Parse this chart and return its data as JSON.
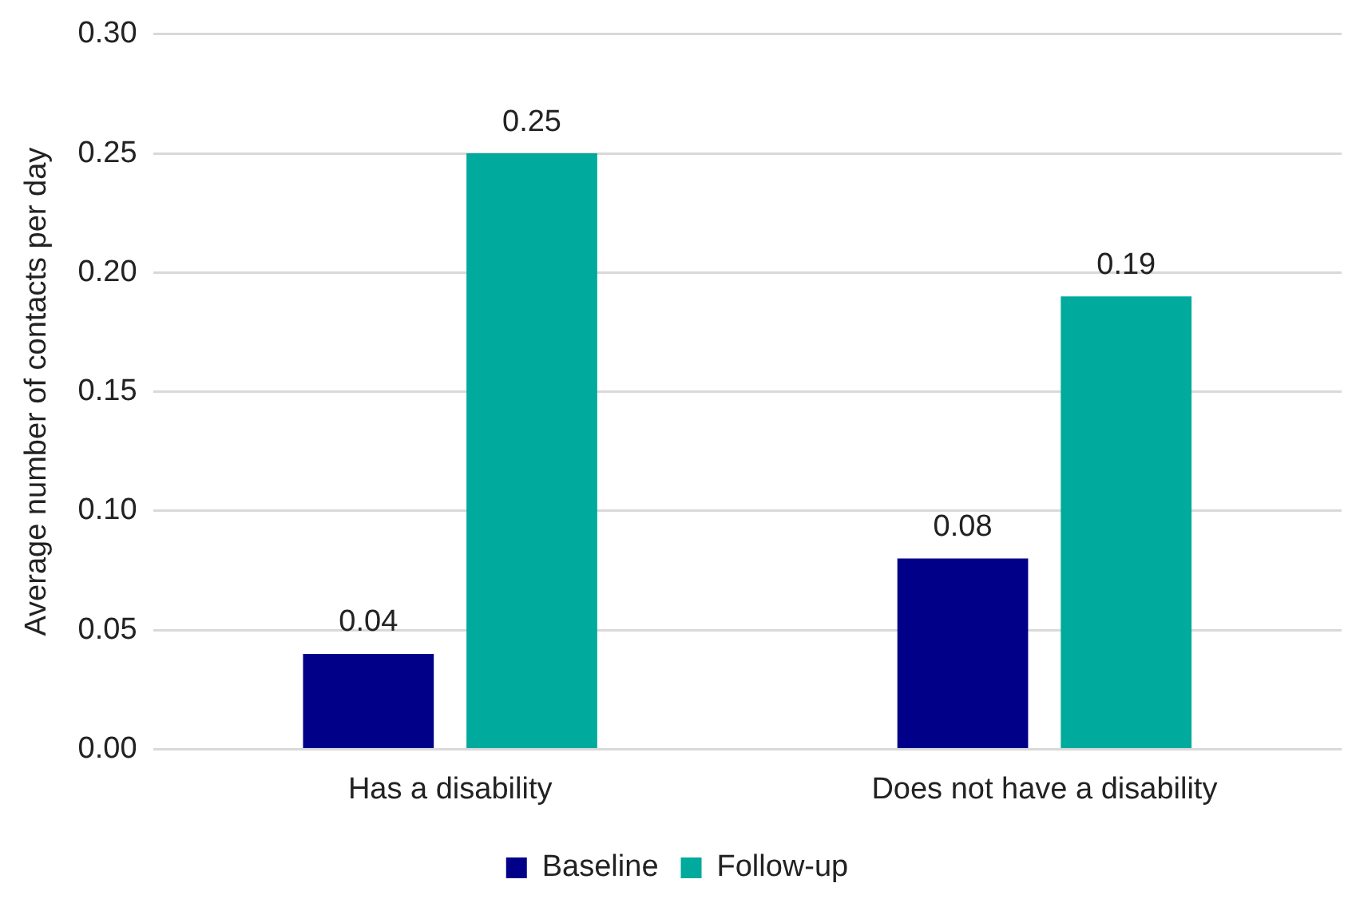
{
  "chart_data": {
    "type": "bar",
    "ylabel": "Average number of contacts per day",
    "categories": [
      "Has a disability",
      "Does not have a disability"
    ],
    "series": [
      {
        "name": "Baseline",
        "color": "#000088",
        "values": [
          0.04,
          0.08
        ]
      },
      {
        "name": "Follow-up",
        "color": "#00aa9c",
        "values": [
          0.25,
          0.19
        ]
      }
    ],
    "ylim": [
      0,
      0.3
    ],
    "yticks": [
      {
        "value": 0,
        "label": "0.00"
      },
      {
        "value": 0.05,
        "label": "0.05"
      },
      {
        "value": 0.1,
        "label": "0.10"
      },
      {
        "value": 0.15,
        "label": "0.15"
      },
      {
        "value": 0.2,
        "label": "0.20"
      },
      {
        "value": 0.25,
        "label": "0.25"
      },
      {
        "value": 0.3,
        "label": "0.30"
      }
    ],
    "grid": "y",
    "legend": "bottom",
    "data_labels": true
  }
}
